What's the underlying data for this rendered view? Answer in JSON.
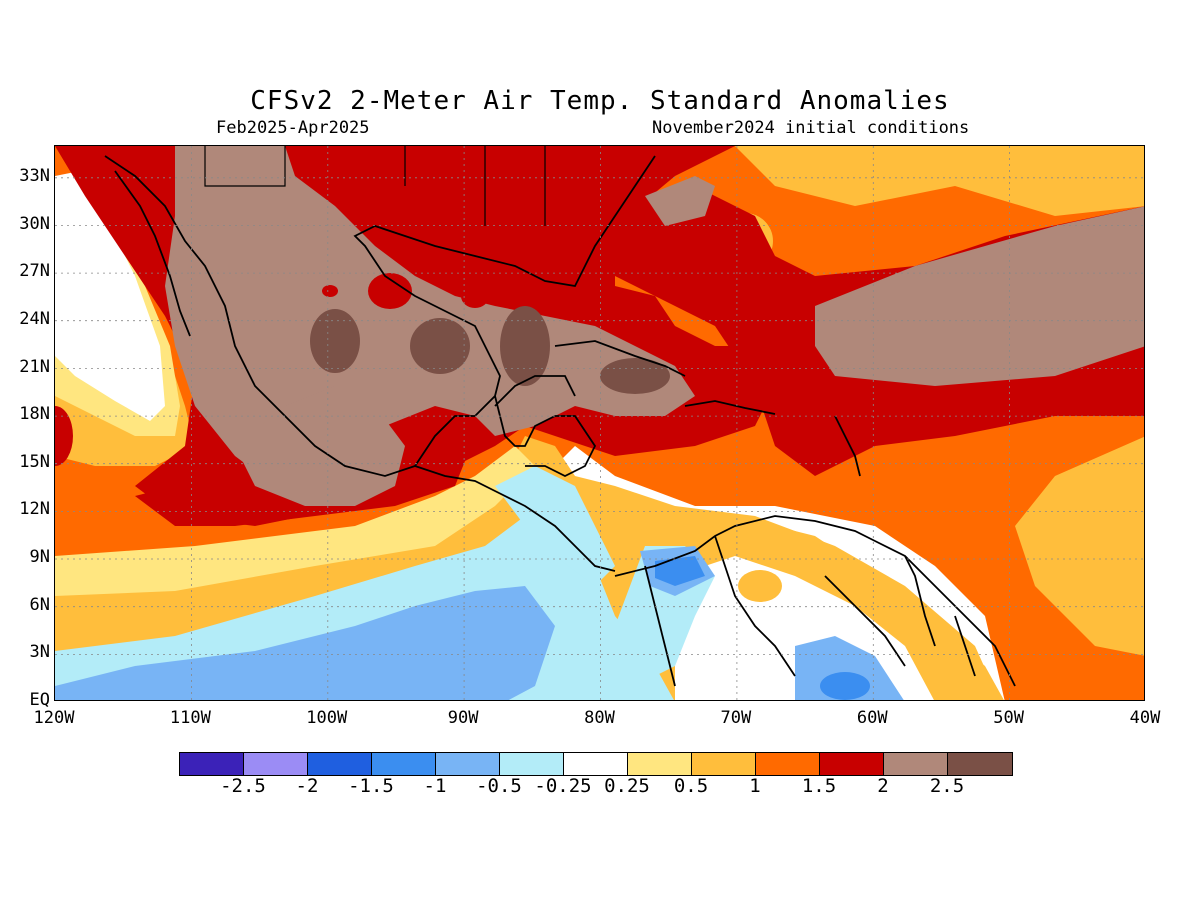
{
  "title": "CFSv2 2-Meter Air Temp. Standard Anomalies",
  "period": "Feb2025-Apr2025",
  "initial_conditions": "November2024 initial conditions",
  "lat_labels": [
    "33N",
    "30N",
    "27N",
    "24N",
    "21N",
    "18N",
    "15N",
    "12N",
    "9N",
    "6N",
    "3N",
    "EQ"
  ],
  "lon_labels": [
    "120W",
    "110W",
    "100W",
    "90W",
    "80W",
    "70W",
    "60W",
    "50W",
    "40W"
  ],
  "colorbar": {
    "colors": [
      "#3b22b8",
      "#9b8cf5",
      "#1f5fe0",
      "#3b8ef0",
      "#78b4f5",
      "#b3ecf8",
      "#ffffff",
      "#ffe680",
      "#ffbe3c",
      "#ff6a00",
      "#c80000",
      "#b0887a",
      "#7a5046"
    ],
    "labels": [
      "-2.5",
      "-2",
      "-1.5",
      "-1",
      "-0.5",
      "-0.25",
      "0.25",
      "0.5",
      "1",
      "1.5",
      "2",
      "2.5"
    ]
  },
  "map": {
    "region": "120W-40W, EQ-35N",
    "projection": "lat-lon",
    "regions": [
      {
        "area": "Mexico interior and Gulf of Mexico",
        "anomaly_class": ">2.5"
      },
      {
        "area": "Subtropical Atlantic 25N",
        "anomaly_class": "2-2.5"
      },
      {
        "area": "Caribbean Sea",
        "anomaly_class": "1.5-2"
      },
      {
        "area": "Eastern tropical Pacific off Baja",
        "anomaly_class": "0.25-0.5"
      },
      {
        "area": "Equatorial eastern Pacific",
        "anomaly_class": "-1 to -0.5"
      },
      {
        "area": "Northern South America",
        "anomaly_class": "-1.5 to 0.5"
      }
    ]
  }
}
